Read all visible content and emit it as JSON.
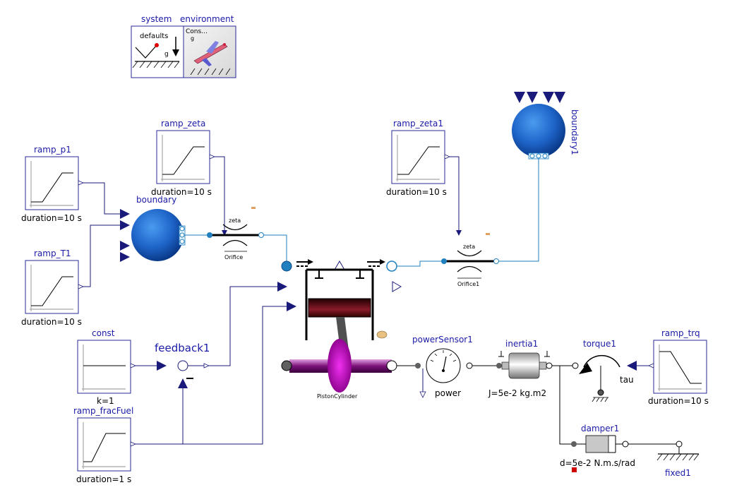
{
  "colors": {
    "signal": "#1a1a7a",
    "fluid": "#1f7fbf",
    "label": "#1a1aa8",
    "boundary_sphere": "#1e64c8",
    "piston_flywheel": "#b000b0"
  },
  "top": {
    "system": {
      "name": "system",
      "text": "defaults",
      "g": "g"
    },
    "environment": {
      "name": "environment",
      "text": "Cons…",
      "g": "g"
    }
  },
  "blocks": {
    "ramp_p1": {
      "name": "ramp_p1",
      "param": "duration=10 s"
    },
    "ramp_T1": {
      "name": "ramp_T1",
      "param": "duration=10 s"
    },
    "ramp_zeta": {
      "name": "ramp_zeta",
      "param": "duration=10 s"
    },
    "ramp_zeta1": {
      "name": "ramp_zeta1",
      "param": "duration=10 s"
    },
    "const": {
      "name": "const",
      "param": "k=1"
    },
    "ramp_fracFuel": {
      "name": "ramp_fracFuel",
      "param": "duration=1 s"
    },
    "ramp_trq": {
      "name": "ramp_trq",
      "param": "duration=10 s"
    }
  },
  "fluid": {
    "boundary": {
      "name": "boundary"
    },
    "boundary1": {
      "name": "boundary1"
    },
    "orifice": {
      "name": "Orifice",
      "zeta": "zeta"
    },
    "orifice1": {
      "name": "Orifice1",
      "zeta": "zeta"
    }
  },
  "mech": {
    "feedback": {
      "name": "feedback1"
    },
    "piston": {
      "name": "PistonCylinder"
    },
    "powerSensor": {
      "name": "powerSensor1",
      "output": "power"
    },
    "inertia": {
      "name": "inertia1",
      "param": "J=5e-2 kg.m2"
    },
    "torque": {
      "name": "torque1",
      "input": "tau"
    },
    "damper": {
      "name": "damper1",
      "param": "d=5e-2 N.m.s/rad"
    },
    "fixed": {
      "name": "fixed1"
    }
  }
}
